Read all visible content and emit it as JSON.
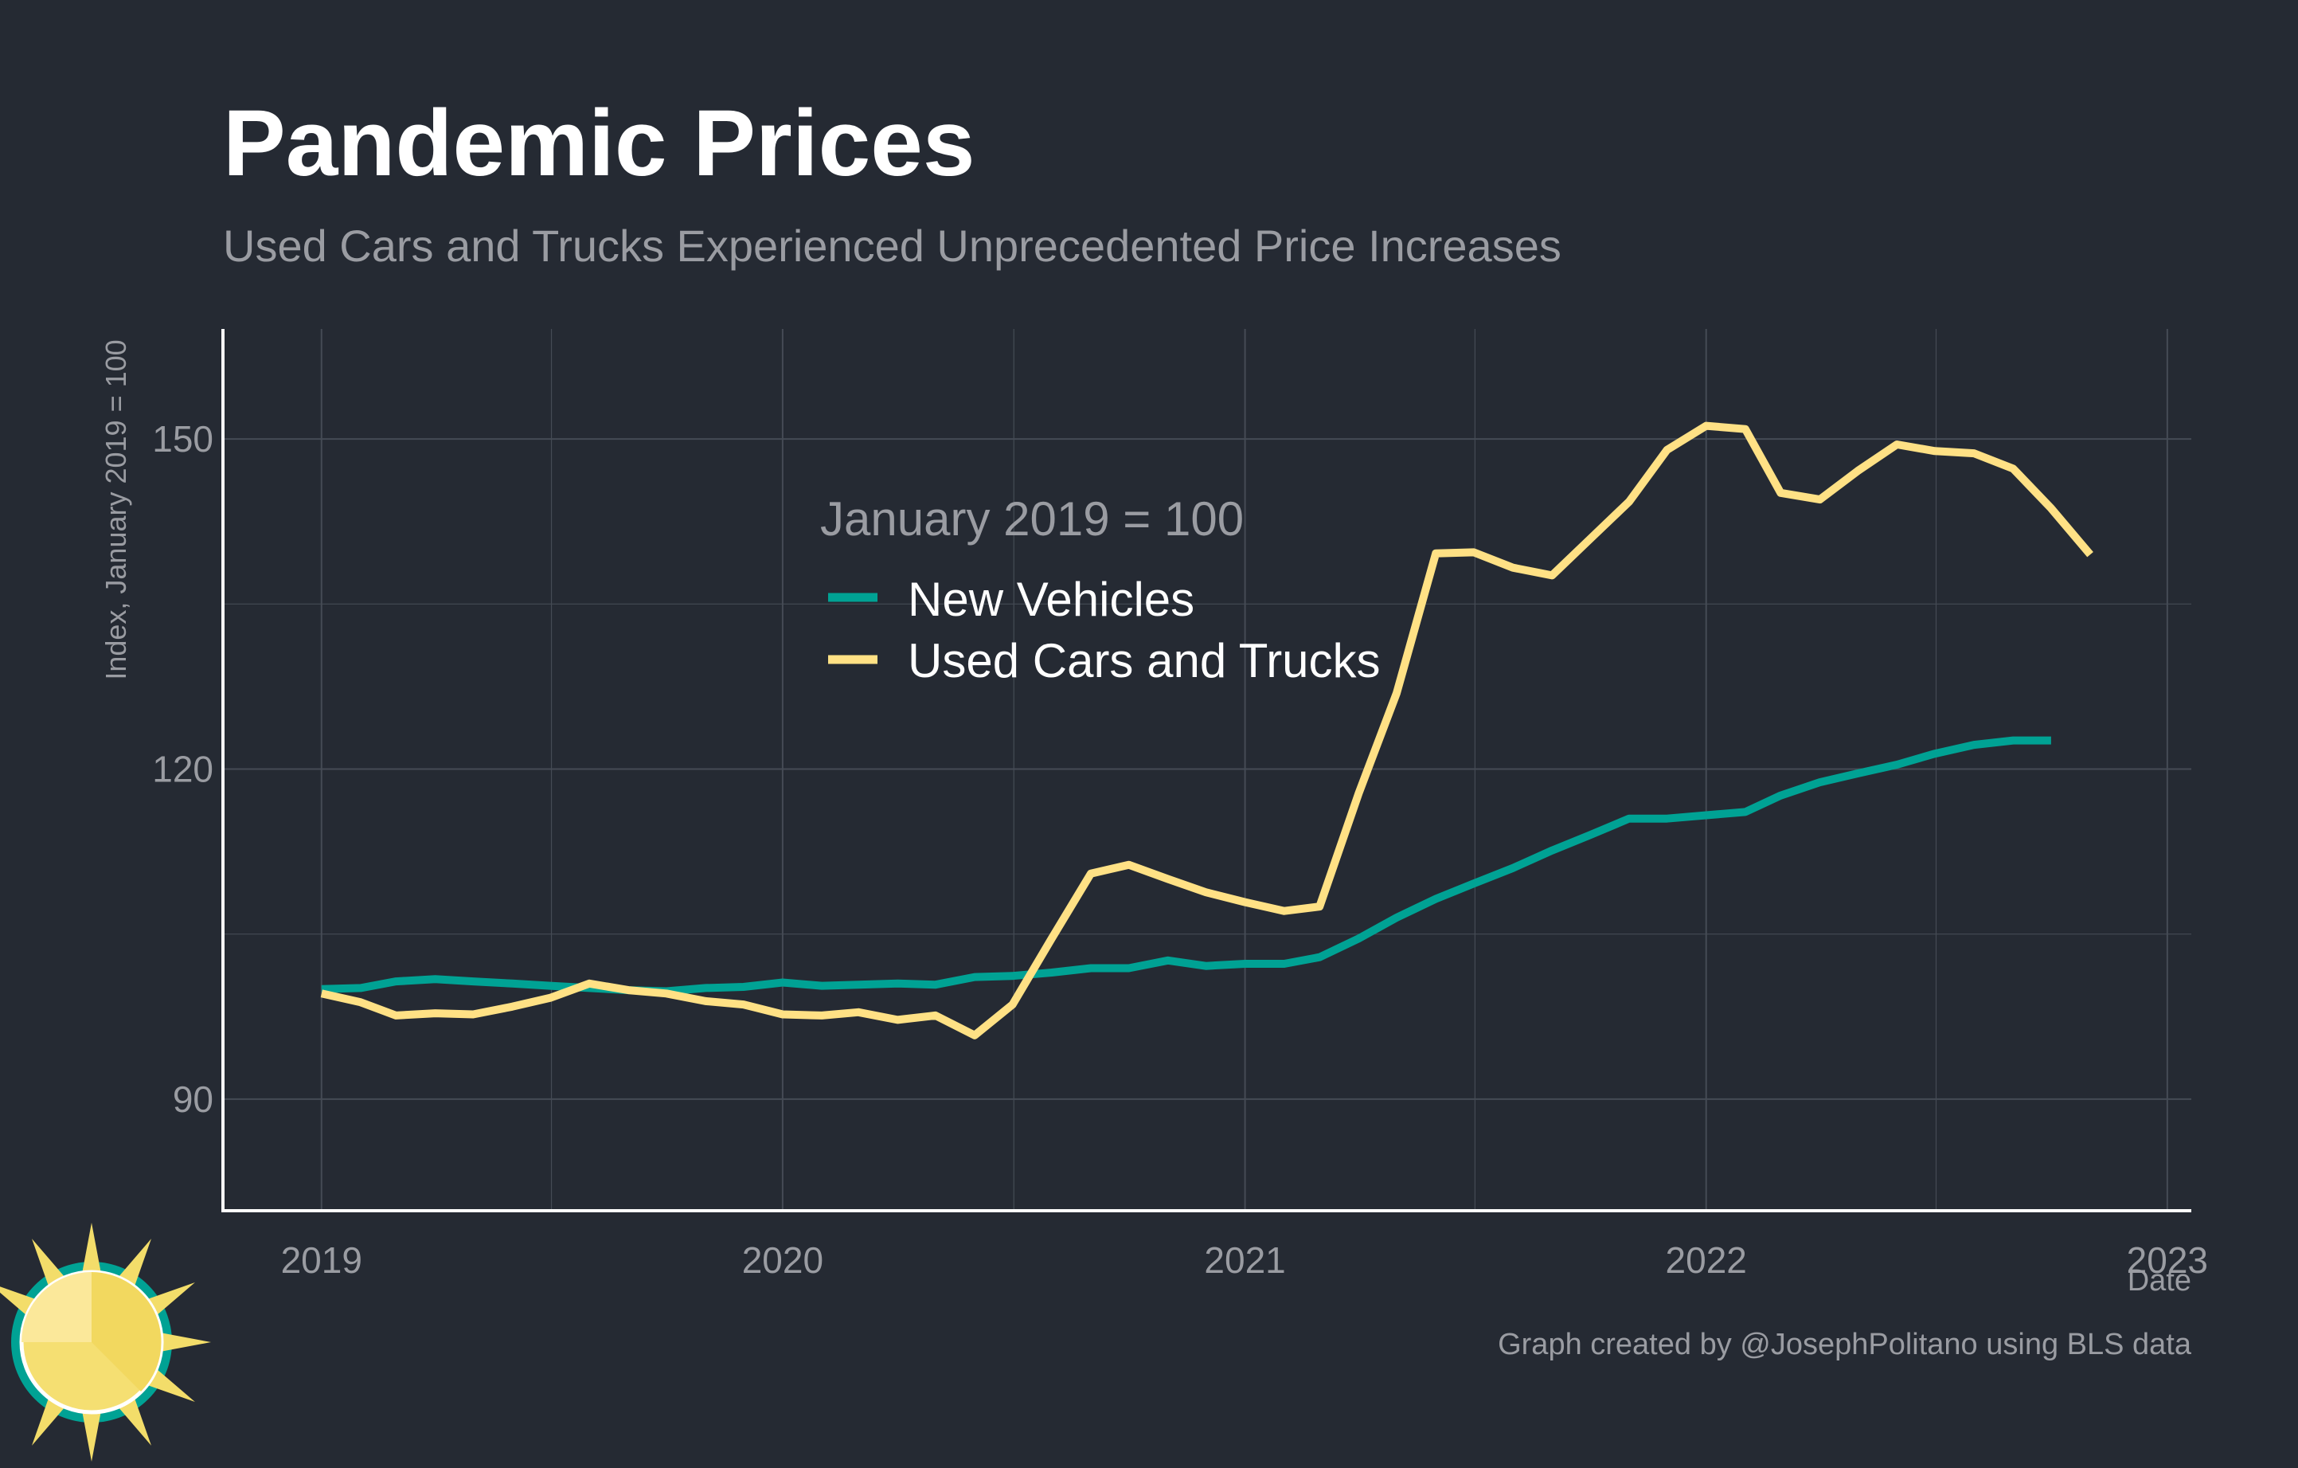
{
  "colors": {
    "background": "#252a33",
    "grid": "#454b55",
    "axis": "#ffffff",
    "new_vehicles": "#00a294",
    "used_cars": "#ffe185",
    "muted_text": "#9a9ca2"
  },
  "logo": {
    "icon": "sun-logo-icon"
  },
  "chart_data": {
    "type": "line",
    "title": "Pandemic Prices",
    "subtitle": "Used Cars and Trucks Experienced Unprecedented Price Increases",
    "xlabel": "Date",
    "ylabel": "Index, January 2019 = 100",
    "caption": "Graph created by @JosephPolitano using BLS data",
    "legend_title": "January 2019 = 100",
    "legend_position": "top-center",
    "grid": true,
    "xlim": [
      "2018-10-15",
      "2023-01-20"
    ],
    "ylim": [
      80,
      160
    ],
    "x_ticks": [
      {
        "value": "2019-01-01",
        "label": "2019"
      },
      {
        "value": "2020-01-01",
        "label": "2020"
      },
      {
        "value": "2021-01-01",
        "label": "2021"
      },
      {
        "value": "2022-01-01",
        "label": "2022"
      },
      {
        "value": "2023-01-01",
        "label": "2023"
      }
    ],
    "y_ticks": [
      90,
      120,
      150
    ],
    "x": [
      "2019-01",
      "2019-02",
      "2019-03",
      "2019-04",
      "2019-05",
      "2019-06",
      "2019-07",
      "2019-08",
      "2019-09",
      "2019-10",
      "2019-11",
      "2019-12",
      "2020-01",
      "2020-02",
      "2020-03",
      "2020-04",
      "2020-05",
      "2020-06",
      "2020-07",
      "2020-08",
      "2020-09",
      "2020-10",
      "2020-11",
      "2020-12",
      "2021-01",
      "2021-02",
      "2021-03",
      "2021-04",
      "2021-05",
      "2021-06",
      "2021-07",
      "2021-08",
      "2021-09",
      "2021-10",
      "2021-11",
      "2021-12",
      "2022-01",
      "2022-02",
      "2022-03",
      "2022-04",
      "2022-05",
      "2022-06",
      "2022-07",
      "2022-08",
      "2022-09",
      "2022-10",
      "2022-11"
    ],
    "series": [
      {
        "name": "New Vehicles",
        "color": "#00a294",
        "values": [
          100.0,
          100.1,
          100.7,
          100.9,
          100.7,
          100.5,
          100.3,
          100.1,
          99.9,
          99.8,
          100.1,
          100.2,
          100.6,
          100.3,
          100.4,
          100.5,
          100.4,
          101.1,
          101.2,
          101.5,
          101.9,
          101.9,
          102.6,
          102.1,
          102.3,
          102.3,
          102.9,
          104.6,
          106.5,
          108.2,
          109.6,
          111.0,
          112.6,
          114.0,
          115.5,
          115.5,
          115.8,
          116.1,
          117.6,
          118.8,
          119.6,
          120.4,
          121.4,
          122.2,
          122.6,
          122.6,
          null
        ]
      },
      {
        "name": "Used Cars and Trucks",
        "color": "#ffe185",
        "values": [
          99.6,
          98.8,
          97.6,
          97.8,
          97.7,
          98.4,
          99.2,
          100.5,
          99.9,
          99.6,
          98.9,
          98.6,
          97.7,
          97.6,
          97.9,
          97.2,
          97.6,
          95.8,
          98.6,
          104.6,
          110.5,
          111.3,
          110.0,
          108.8,
          107.9,
          107.1,
          107.5,
          117.8,
          126.9,
          139.6,
          139.7,
          138.3,
          137.6,
          140.9,
          144.3,
          149.0,
          151.2,
          150.9,
          145.1,
          144.5,
          147.1,
          149.5,
          148.9,
          148.7,
          147.3,
          143.7,
          139.5
        ]
      }
    ]
  }
}
